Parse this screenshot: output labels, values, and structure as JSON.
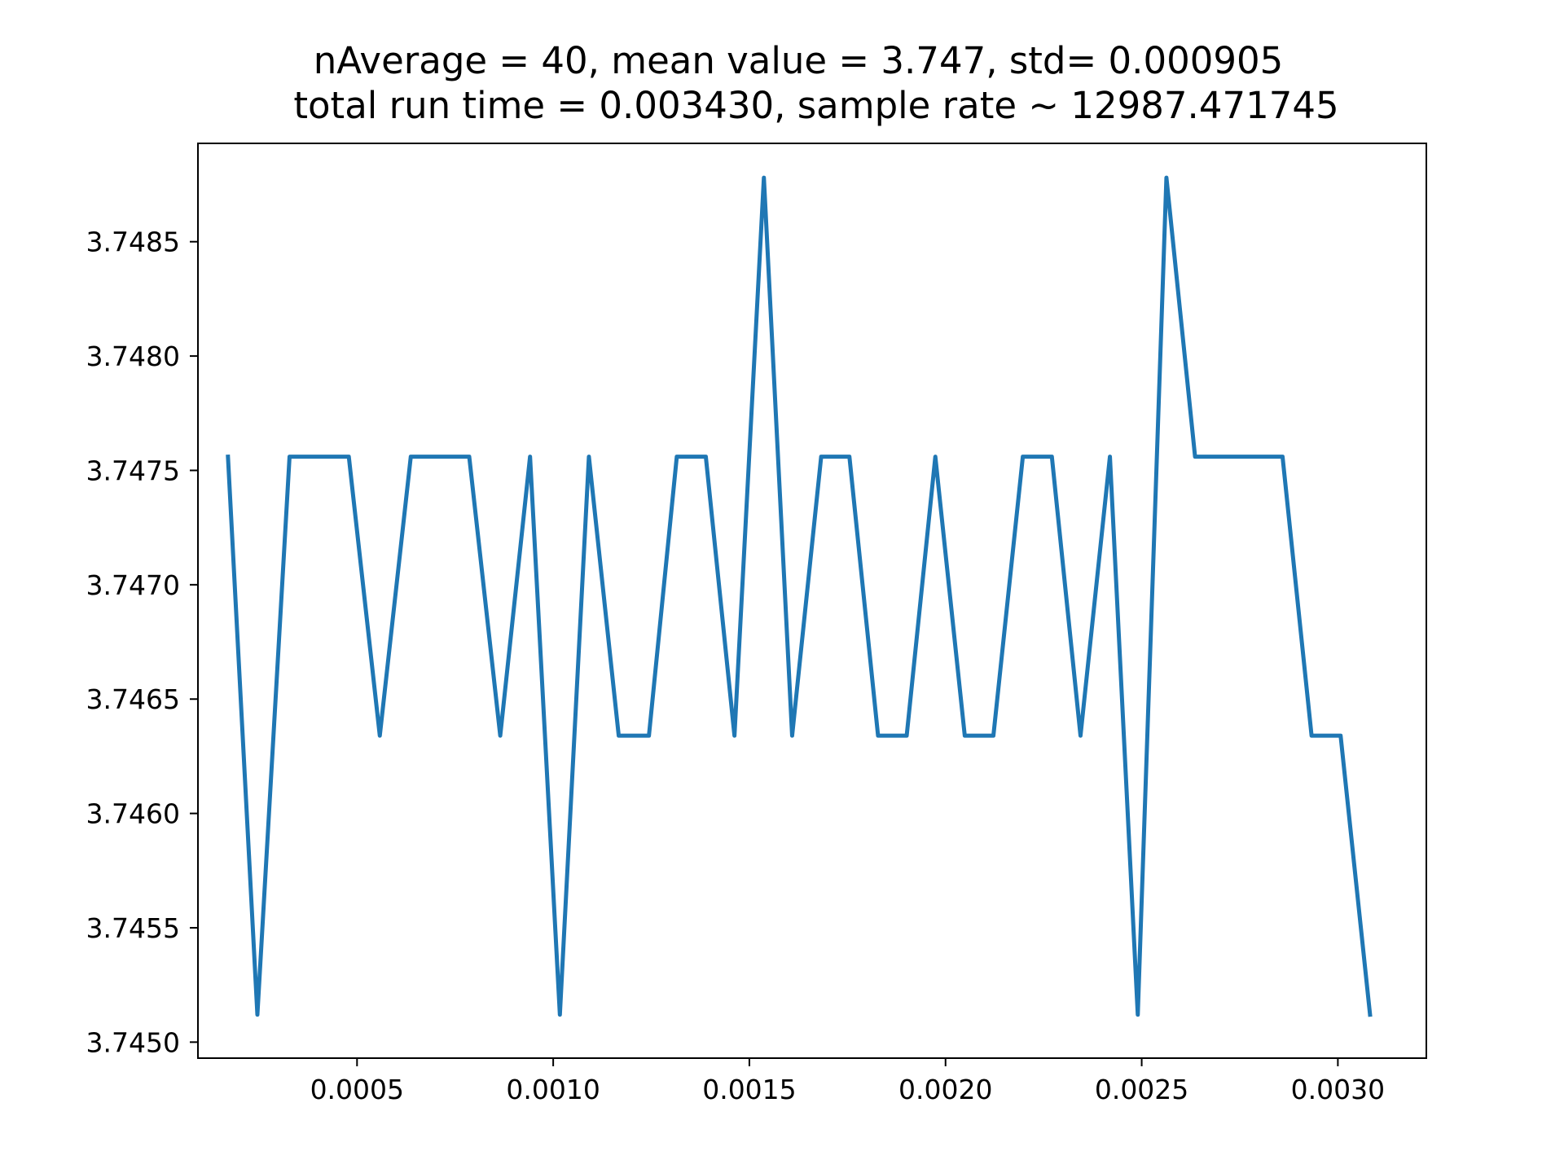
{
  "chart_data": {
    "type": "line",
    "title_lines": [
      "nAverage = 40, mean value = 3.747, std= 0.000905",
      "total run time = 0.003430, sample rate ~ 12987.471745"
    ],
    "xlabel": "",
    "ylabel": "",
    "xlim": [
      9.45e-05,
      0.0032255
    ],
    "ylim": [
      3.74493,
      3.74893
    ],
    "xticks": [
      0.0005,
      0.001,
      0.0015,
      0.002,
      0.0025,
      0.003
    ],
    "xtick_labels": [
      "0.0005",
      "0.0010",
      "0.0015",
      "0.0020",
      "0.0025",
      "0.0030"
    ],
    "yticks": [
      3.745,
      3.7455,
      3.746,
      3.7465,
      3.747,
      3.7475,
      3.748,
      3.7485
    ],
    "ytick_labels": [
      "3.7450",
      "3.7455",
      "3.7460",
      "3.7465",
      "3.7470",
      "3.7475",
      "3.7480",
      "3.7485"
    ],
    "grid": false,
    "legend": "none",
    "color": "#1f77b4",
    "series": [
      {
        "x": [
          0.000171,
          0.000246,
          0.000328,
          0.000403,
          0.000479,
          0.000558,
          0.000637,
          0.000712,
          0.000786,
          0.000865,
          0.000941,
          0.001017,
          0.001091,
          0.001167,
          0.001244,
          0.001315,
          0.001389,
          0.001462,
          0.001537,
          0.001609,
          0.001683,
          0.001755,
          0.001828,
          0.001901,
          0.001974,
          0.002049,
          0.002122,
          0.002197,
          0.002271,
          0.002344,
          0.002419,
          0.00249,
          0.002563,
          0.002636,
          0.00271,
          0.002785,
          0.002859,
          0.002933,
          0.003007,
          0.003082
        ],
        "y": [
          3.74756,
          3.74512,
          3.74756,
          3.74756,
          3.74756,
          3.74634,
          3.74756,
          3.74756,
          3.74756,
          3.74634,
          3.74756,
          3.74512,
          3.74756,
          3.74634,
          3.74634,
          3.74756,
          3.74756,
          3.74634,
          3.74878,
          3.74634,
          3.74756,
          3.74756,
          3.74634,
          3.74634,
          3.74756,
          3.74634,
          3.74634,
          3.74756,
          3.74756,
          3.74634,
          3.74756,
          3.74512,
          3.74878,
          3.74756,
          3.74756,
          3.74756,
          3.74756,
          3.74634,
          3.74634,
          3.74512
        ]
      }
    ]
  }
}
